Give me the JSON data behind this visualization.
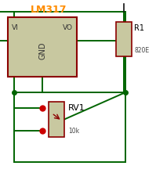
{
  "bg_color": "#ffffff",
  "wire_color": "#006400",
  "component_border_color": "#8B0000",
  "component_fill_color": "#c8c8a0",
  "junction_color": "#006400",
  "title": "LM317",
  "title_color": "#FF8C00",
  "r1_label": "R1",
  "r1_value": "820E",
  "rv1_label": "RV1",
  "rv1_value": "10k",
  "gnd_label": "GND",
  "vi_label": "VI",
  "vo_label": "VO",
  "dot_color": "#cc0000"
}
